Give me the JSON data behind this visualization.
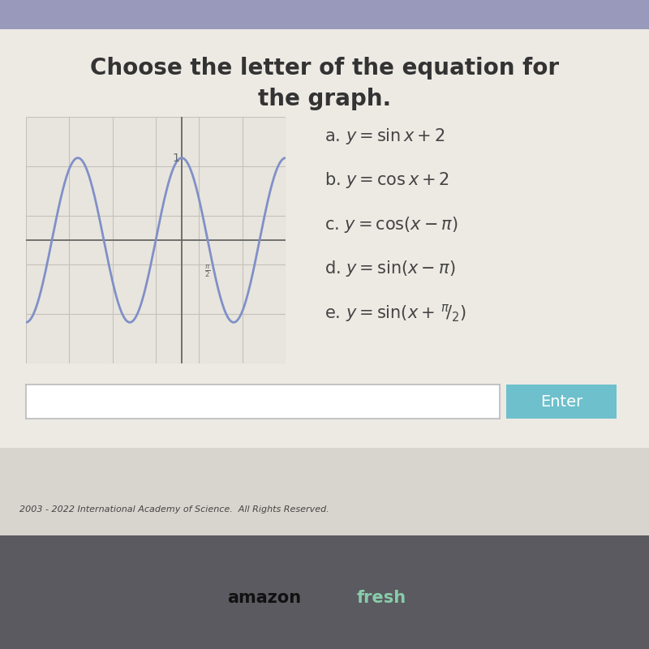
{
  "title_line1": "Choose the letter of the equation for",
  "title_line2": "the graph.",
  "options": [
    "a. $y = \\sin x + 2$",
    "b. $y = \\cos x + 2$",
    "c. $y = \\cos(x - \\pi)$",
    "d. $y = \\sin(x - \\pi)$",
    "e. $y = \\sin(x + ^{\\pi}\\!/_{2})$"
  ],
  "graph_curve_color": "#8090C8",
  "graph_bg_color": "#E8E5DE",
  "graph_grid_color": "#C5C1BA",
  "graph_axis_color": "#666666",
  "page_bg_color": "#EDEAE4",
  "title_color": "#333333",
  "options_color": "#444444",
  "footer_text": "2003 - 2022 International Academy of Science.  All Rights Reserved.",
  "enter_button_color": "#6DC0CC",
  "enter_button_text": "Enter",
  "x_tick_label": "\\pi/2",
  "y_tick_label": "1",
  "bottom_bar_color": "#5A5A60",
  "top_stripe_color": "#7777AA",
  "amazon_text": "amazon",
  "fresh_text": "fresh"
}
